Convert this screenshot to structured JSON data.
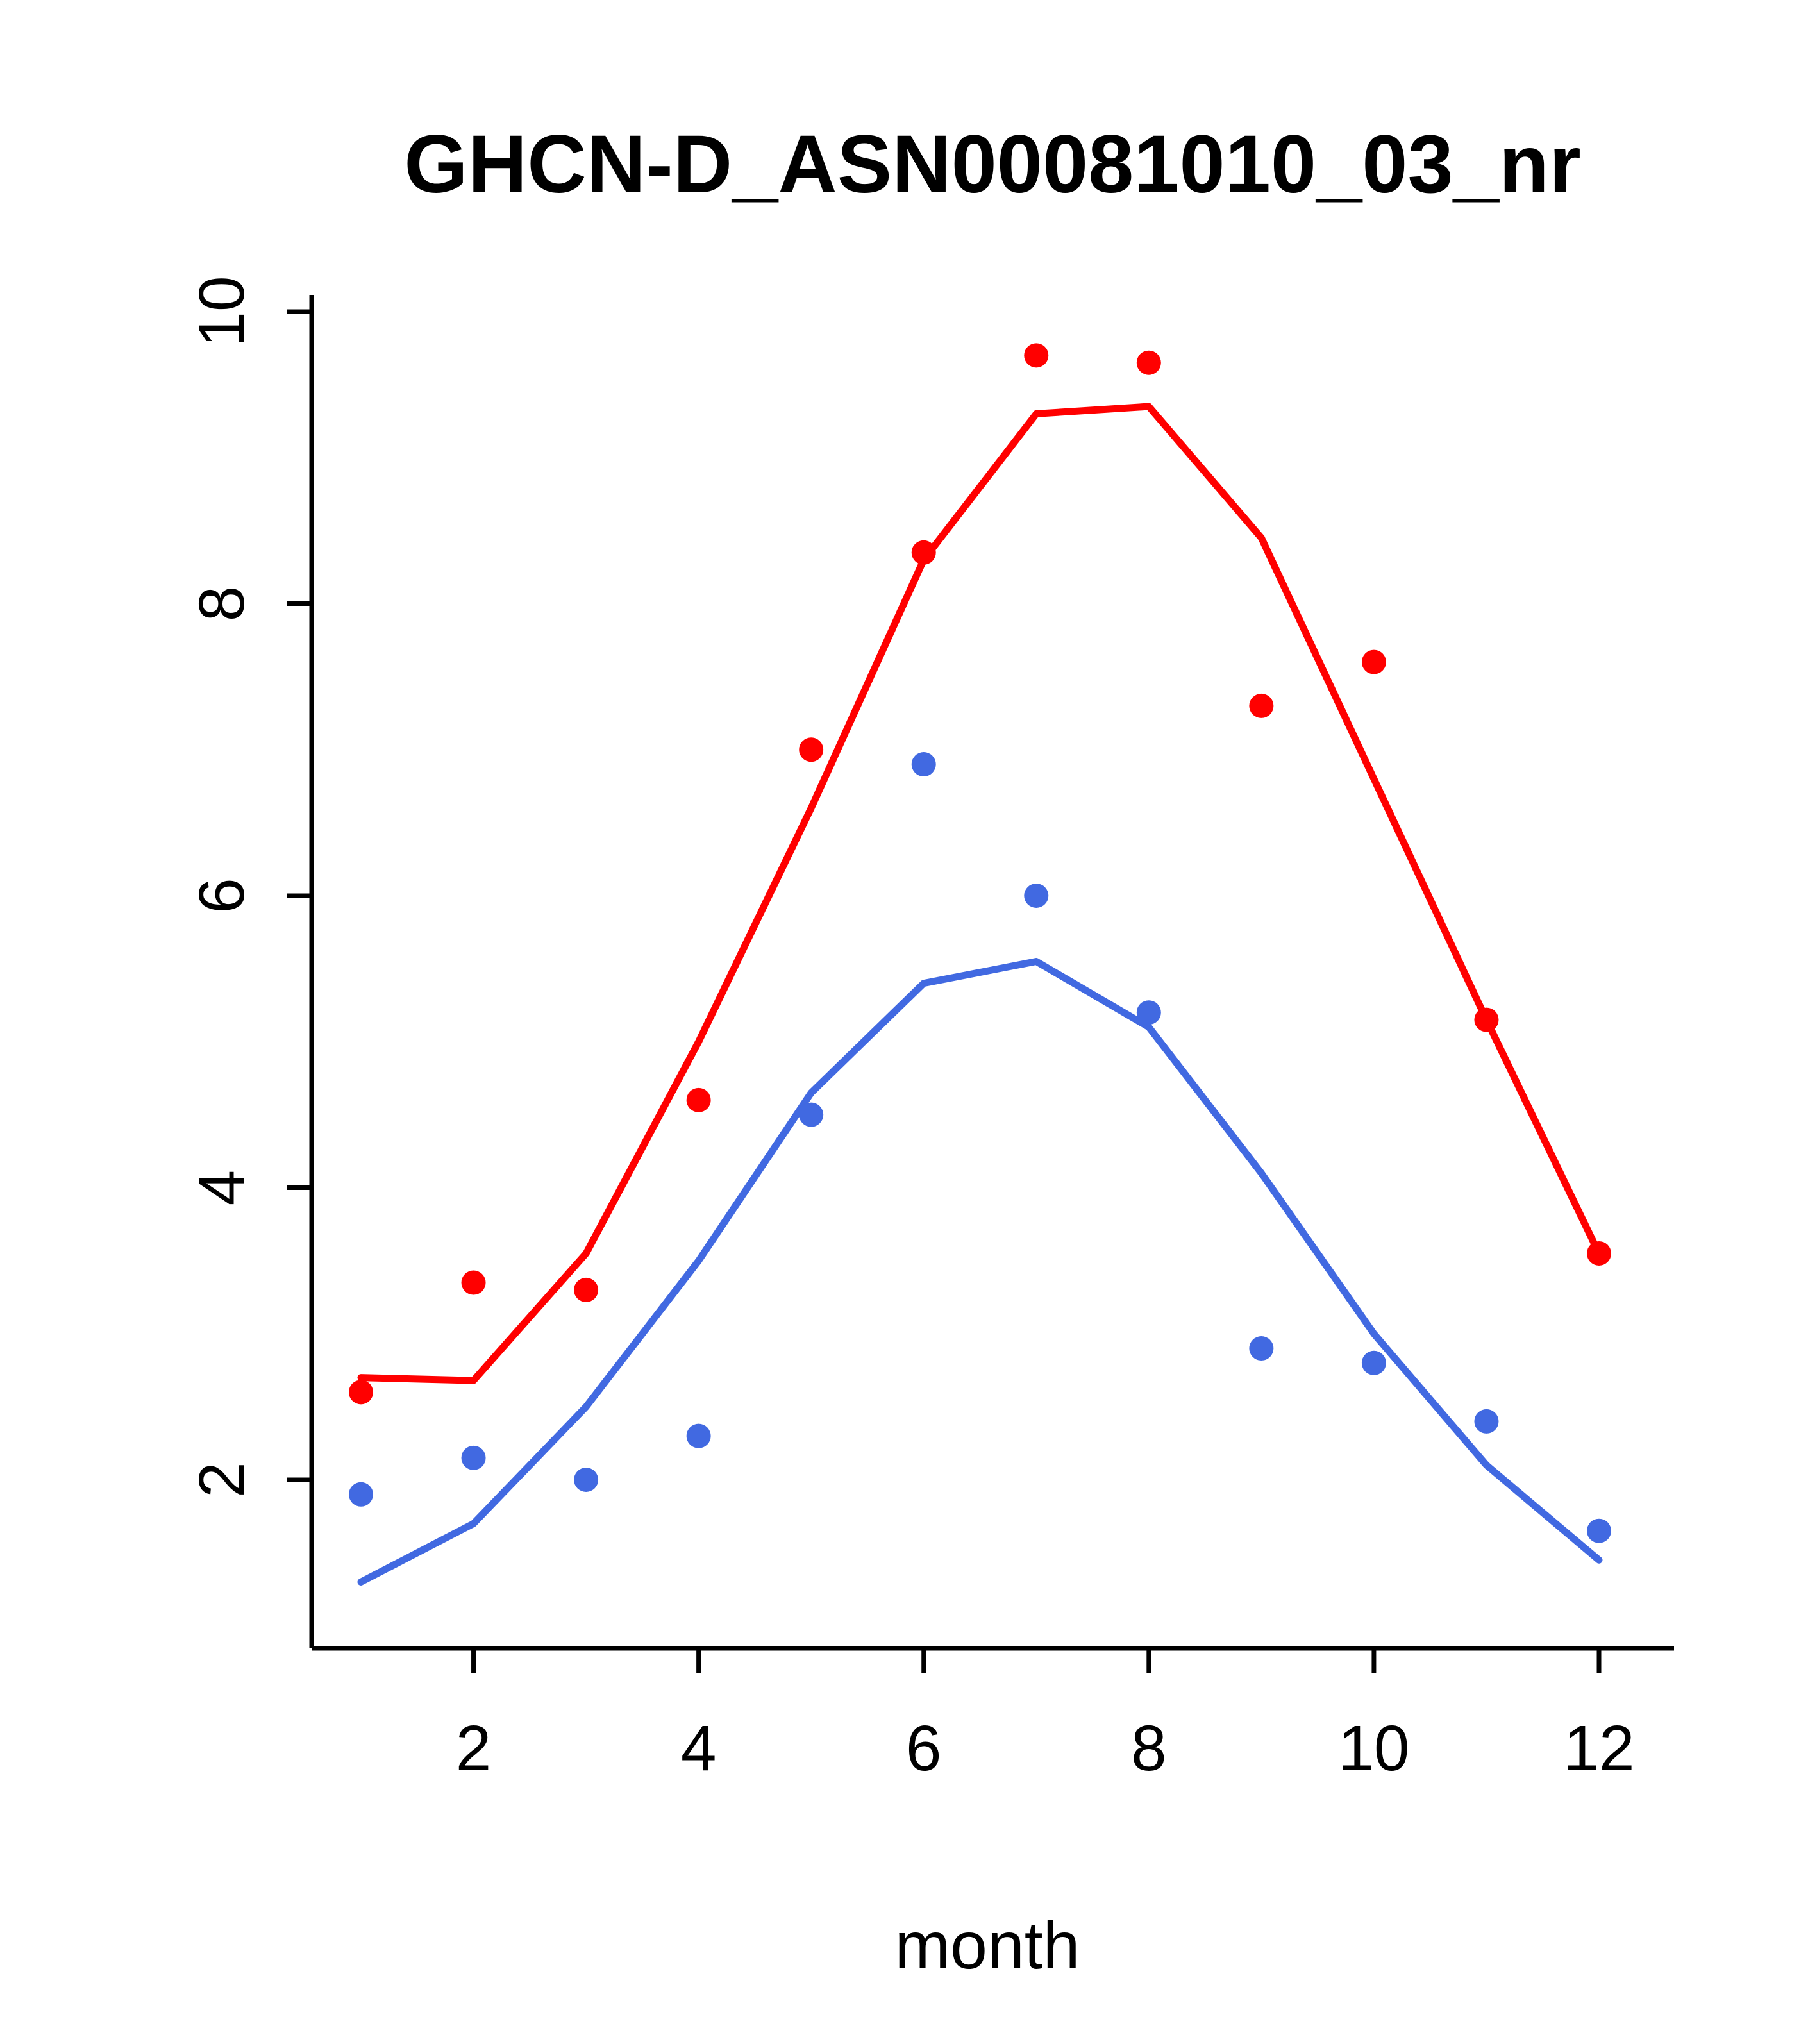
{
  "chart_data": {
    "type": "line",
    "title": "GHCN-D_ASN00081010_03_nr",
    "xlabel": "month",
    "ylabel": "",
    "x": [
      1,
      2,
      3,
      4,
      5,
      6,
      7,
      8,
      9,
      10,
      11,
      12
    ],
    "xlim": [
      0.56,
      12.44
    ],
    "ylim": [
      0.85,
      10.1
    ],
    "xticks": [
      2,
      4,
      6,
      8,
      10,
      12
    ],
    "yticks": [
      2,
      4,
      6,
      8,
      10
    ],
    "grid": false,
    "legend": "none",
    "colors": {
      "red": "#FF0000",
      "blue": "#4169E1",
      "axis": "#000000",
      "background": "#FFFFFF"
    },
    "series": [
      {
        "name": "red-line",
        "style": "line",
        "color": "#FF0000",
        "values": [
          2.7,
          2.68,
          3.55,
          5.0,
          6.6,
          8.3,
          9.3,
          9.35,
          8.45,
          6.8,
          5.15,
          3.55
        ]
      },
      {
        "name": "blue-line",
        "style": "line",
        "color": "#4169E1",
        "values": [
          1.3,
          1.7,
          2.5,
          3.5,
          4.65,
          5.4,
          5.55,
          5.1,
          4.1,
          3.0,
          2.1,
          1.45
        ]
      },
      {
        "name": "red-points",
        "style": "points",
        "color": "#FF0000",
        "values": [
          2.6,
          3.35,
          3.3,
          4.6,
          7.0,
          8.35,
          9.7,
          9.65,
          7.3,
          7.6,
          5.15,
          3.55
        ]
      },
      {
        "name": "blue-points",
        "style": "points",
        "color": "#4169E1",
        "values": [
          1.9,
          2.15,
          2.0,
          2.3,
          4.5,
          6.9,
          6.0,
          5.2,
          2.9,
          2.8,
          2.4,
          1.65
        ]
      }
    ]
  }
}
